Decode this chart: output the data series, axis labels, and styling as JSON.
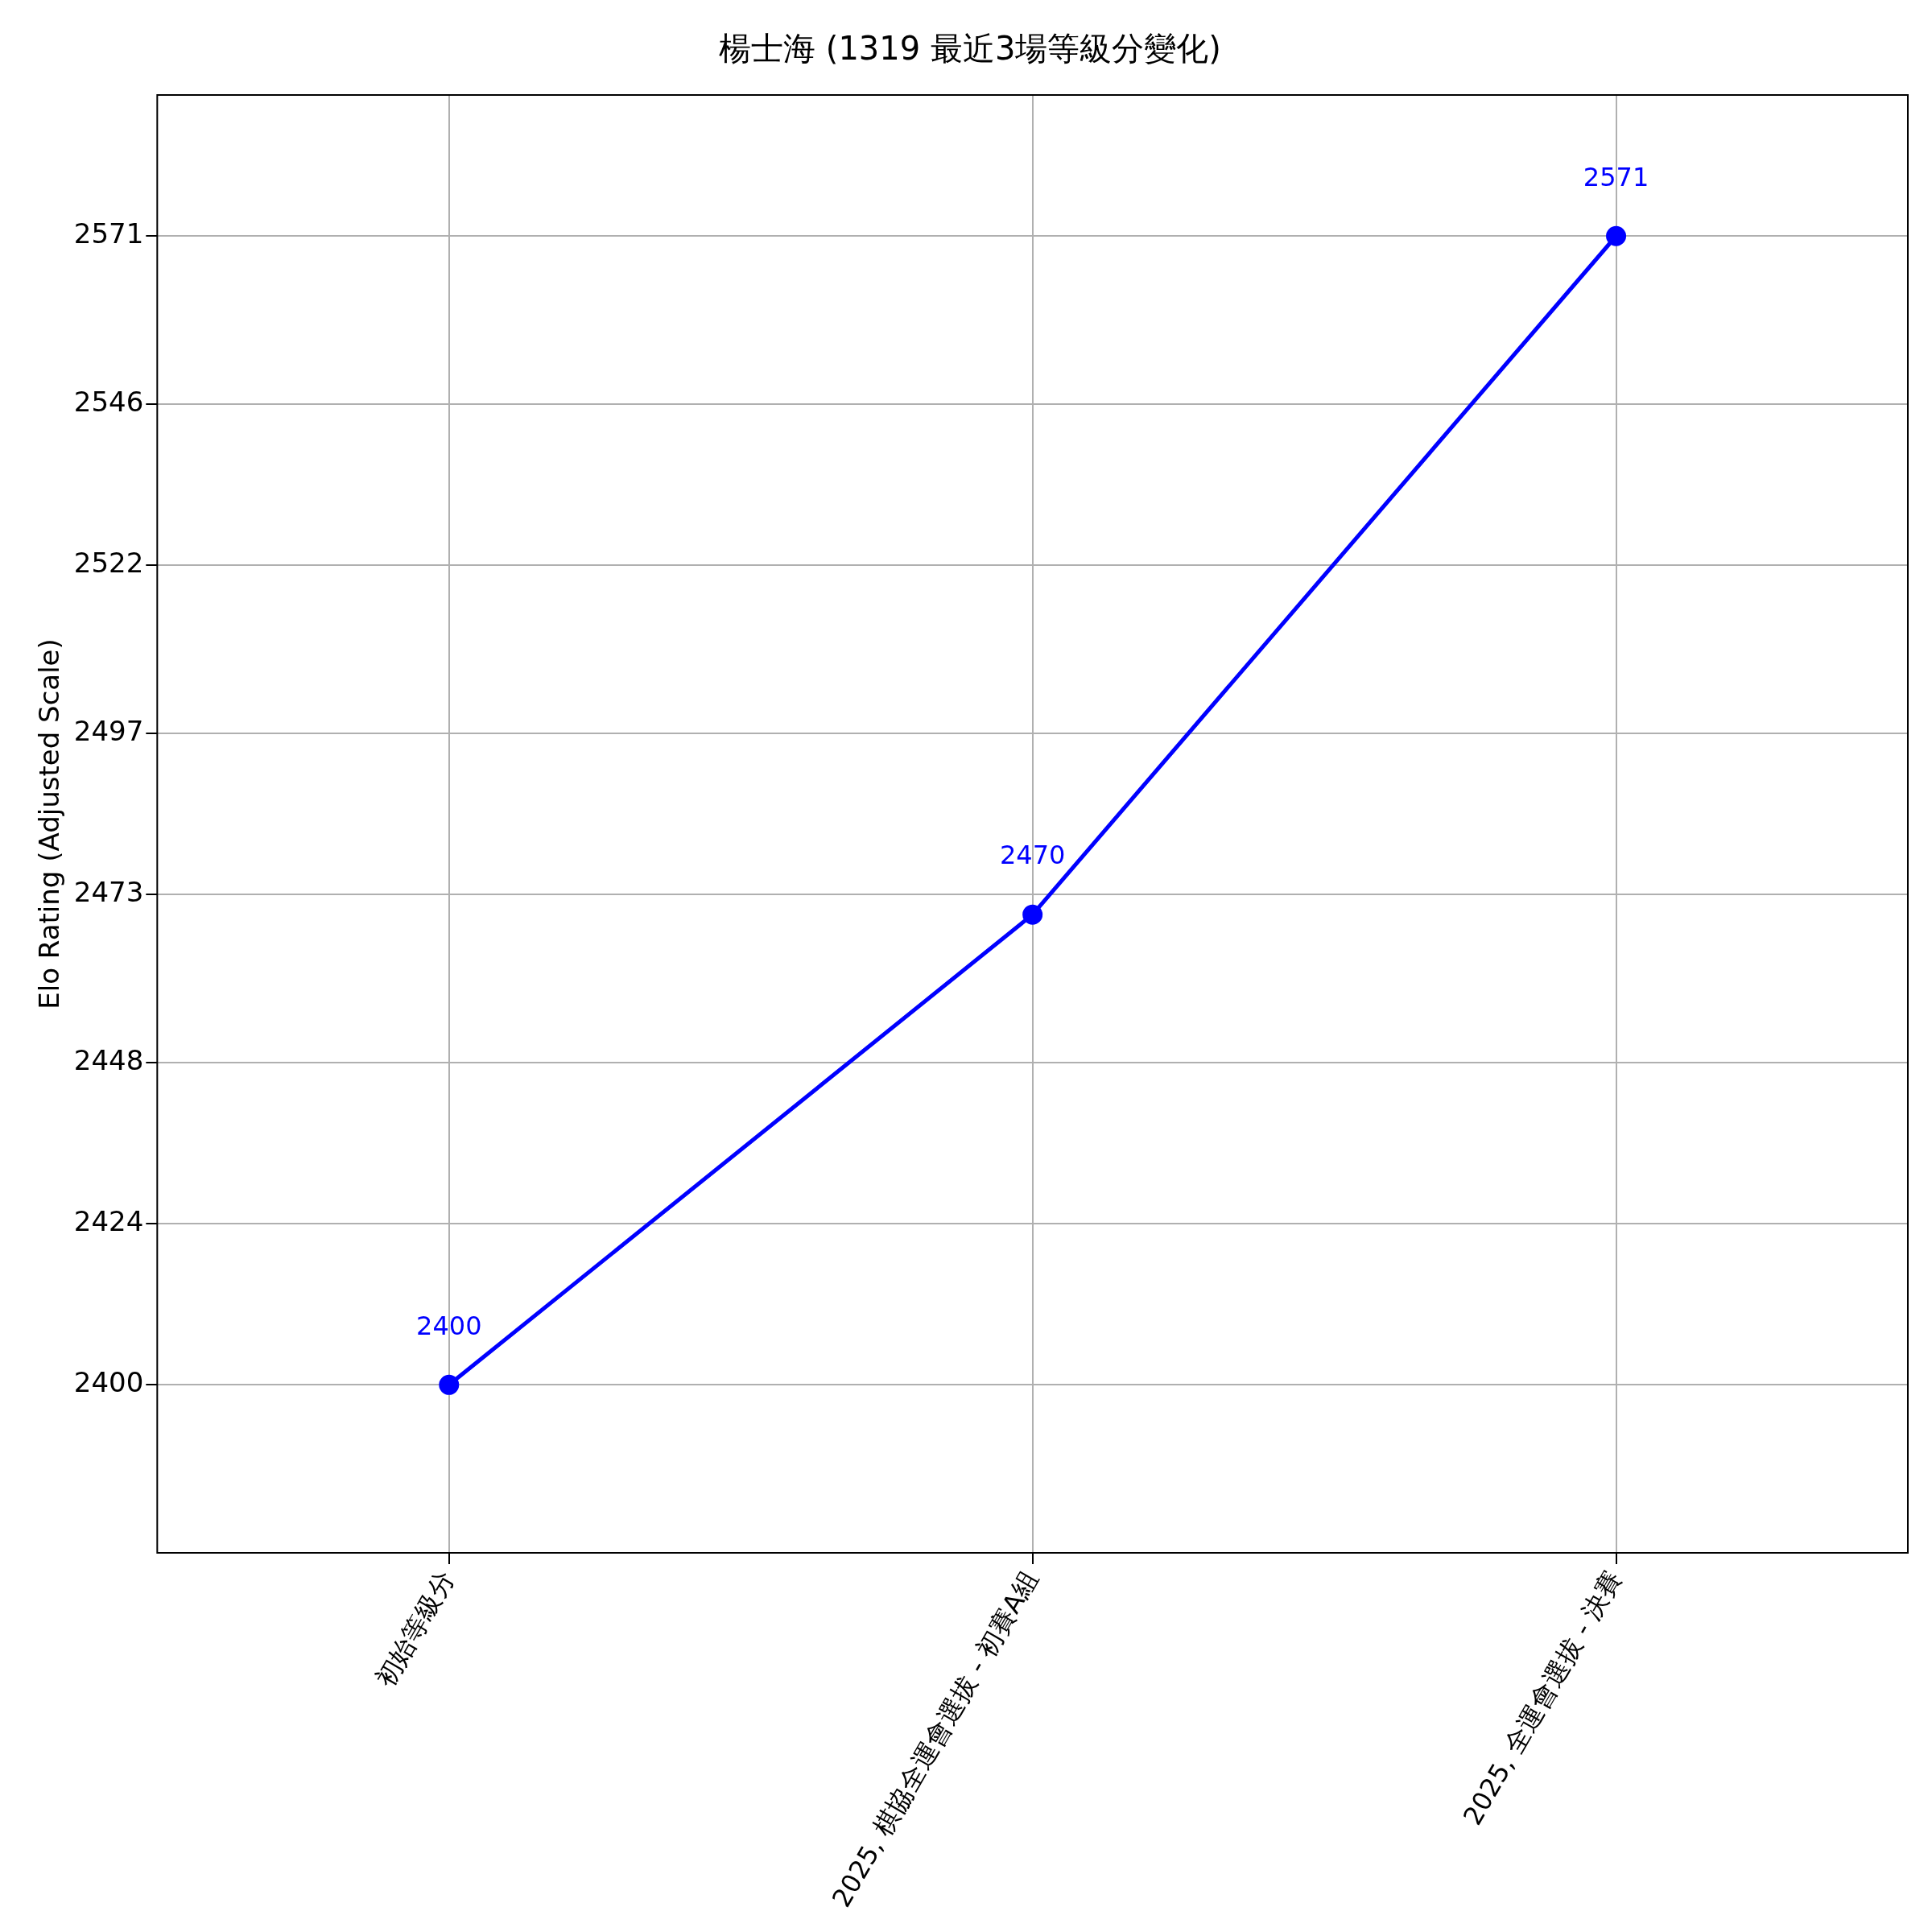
{
  "chart_data": {
    "type": "line",
    "title": "楊士海 (1319 最近3場等級分變化)",
    "ylabel": "Elo Rating (Adjusted Scale)",
    "categories": [
      "初始等級分",
      "2025, 棋協全運會選拔 - 初賽A組",
      "2025, 全運會選拔 - 決賽"
    ],
    "series": [
      {
        "color": "#0000ff",
        "values": [
          2400,
          2470,
          2571
        ]
      }
    ],
    "ylim": [
      2375,
      2592
    ],
    "yticks": [
      2400,
      2424,
      2448,
      2473,
      2497,
      2522,
      2546,
      2571
    ],
    "grid": true,
    "marker": "circle",
    "line_style": "solid",
    "data_labels": true,
    "legend": false
  }
}
